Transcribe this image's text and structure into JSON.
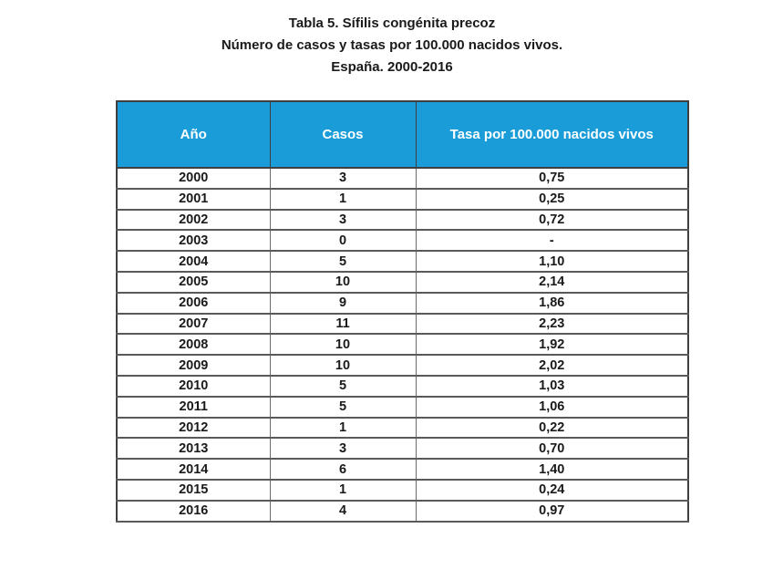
{
  "title": {
    "line1": "Tabla 5. Sífilis congénita precoz",
    "line2": "Número de casos y tasas por 100.000 nacidos vivos.",
    "line3": "España. 2000-2016"
  },
  "table": {
    "headers": [
      "Año",
      "Casos",
      "Tasa por 100.000 nacidos vivos"
    ],
    "rows": [
      [
        "2000",
        "3",
        "0,75"
      ],
      [
        "2001",
        "1",
        "0,25"
      ],
      [
        "2002",
        "3",
        "0,72"
      ],
      [
        "2003",
        "0",
        "-"
      ],
      [
        "2004",
        "5",
        "1,10"
      ],
      [
        "2005",
        "10",
        "2,14"
      ],
      [
        "2006",
        "9",
        "1,86"
      ],
      [
        "2007",
        "11",
        "2,23"
      ],
      [
        "2008",
        "10",
        "1,92"
      ],
      [
        "2009",
        "10",
        "2,02"
      ],
      [
        "2010",
        "5",
        "1,03"
      ],
      [
        "2011",
        "5",
        "1,06"
      ],
      [
        "2012",
        "1",
        "0,22"
      ],
      [
        "2013",
        "3",
        "0,70"
      ],
      [
        "2014",
        "6",
        "1,40"
      ],
      [
        "2015",
        "1",
        "0,24"
      ],
      [
        "2016",
        "4",
        "0,97"
      ]
    ]
  },
  "colors": {
    "header_bg": "#199cd8",
    "header_text": "#ffffff",
    "row_border": "#595959",
    "body_text": "#1a1a1a"
  }
}
